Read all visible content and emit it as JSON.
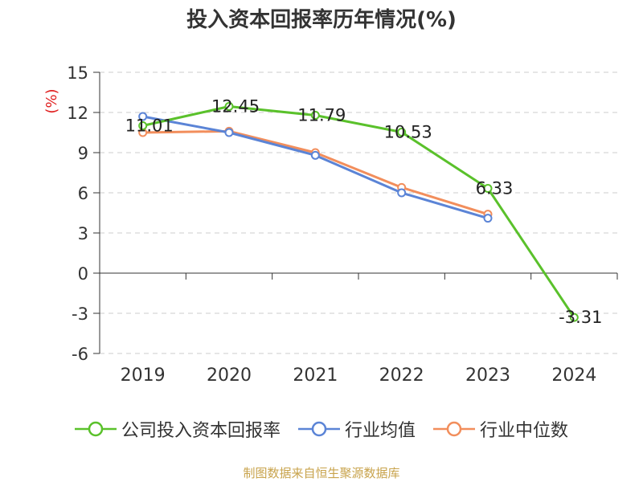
{
  "chart_data": {
    "type": "line",
    "title": "投入资本回报率历年情况(%)",
    "ylabel": "(%)",
    "categories": [
      "2019",
      "2020",
      "2021",
      "2022",
      "2023",
      "2024"
    ],
    "ylim": [
      -6,
      15
    ],
    "yticks": [
      15,
      12,
      9,
      6,
      3,
      0,
      -3,
      -6
    ],
    "grid": true,
    "legend_position": "bottom",
    "series": [
      {
        "name": "公司投入资本回报率",
        "color": "#5ac12b",
        "values": [
          11.01,
          12.45,
          11.79,
          10.53,
          6.33,
          -3.31
        ],
        "labels": [
          "11.01",
          "12.45",
          "11.79",
          "10.53",
          "6.33",
          "-3.31"
        ]
      },
      {
        "name": "行业均值",
        "color": "#5b84d6",
        "values": [
          11.7,
          10.5,
          8.8,
          6.0,
          4.1,
          null
        ]
      },
      {
        "name": "行业中位数",
        "color": "#f28e5c",
        "values": [
          10.5,
          10.6,
          9.0,
          6.4,
          4.4,
          null
        ]
      }
    ]
  },
  "source": "制图数据来自恒生聚源数据库"
}
